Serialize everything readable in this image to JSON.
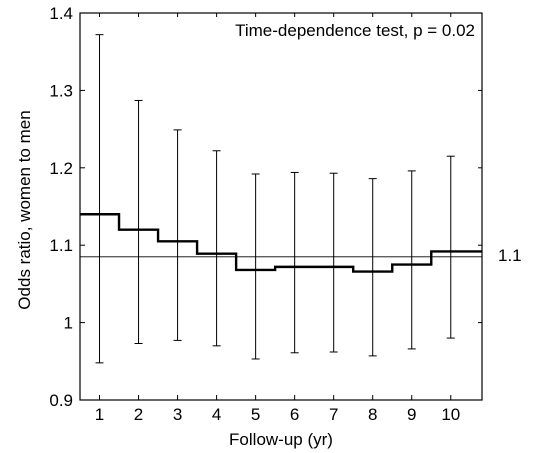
{
  "chart_data": {
    "type": "line",
    "annotation": "Time-dependence  test, p = 0.02",
    "xlabel": "Follow-up  (yr)",
    "ylabel": "Odds  ratio,  women  to  men",
    "xlim": [
      0.5,
      10.8
    ],
    "ylim": [
      0.9,
      1.4
    ],
    "x_ticks": [
      "1",
      "2",
      "3",
      "4",
      "5",
      "6",
      "7",
      "8",
      "9",
      "10"
    ],
    "y_ticks": [
      "0.9",
      "1",
      "1.1",
      "1.2",
      "1.3",
      "1.4"
    ],
    "reference_line": {
      "value": 1.085,
      "label": "1.1"
    },
    "grid": false,
    "series": [
      {
        "values": [
          {
            "x": 1,
            "odds_ratio": 1.14,
            "lower": 0.948,
            "upper": 1.372
          },
          {
            "x": 2,
            "odds_ratio": 1.12,
            "lower": 0.973,
            "upper": 1.287
          },
          {
            "x": 3,
            "odds_ratio": 1.105,
            "lower": 0.977,
            "upper": 1.249
          },
          {
            "x": 4,
            "odds_ratio": 1.089,
            "lower": 0.97,
            "upper": 1.222
          },
          {
            "x": 5,
            "odds_ratio": 1.068,
            "lower": 0.953,
            "upper": 1.192
          },
          {
            "x": 6,
            "odds_ratio": 1.072,
            "lower": 0.961,
            "upper": 1.194
          },
          {
            "x": 7,
            "odds_ratio": 1.072,
            "lower": 0.962,
            "upper": 1.193
          },
          {
            "x": 8,
            "odds_ratio": 1.066,
            "lower": 0.957,
            "upper": 1.186
          },
          {
            "x": 9,
            "odds_ratio": 1.075,
            "lower": 0.966,
            "upper": 1.196
          },
          {
            "x": 10,
            "odds_ratio": 1.092,
            "lower": 0.98,
            "upper": 1.215
          }
        ]
      }
    ]
  }
}
